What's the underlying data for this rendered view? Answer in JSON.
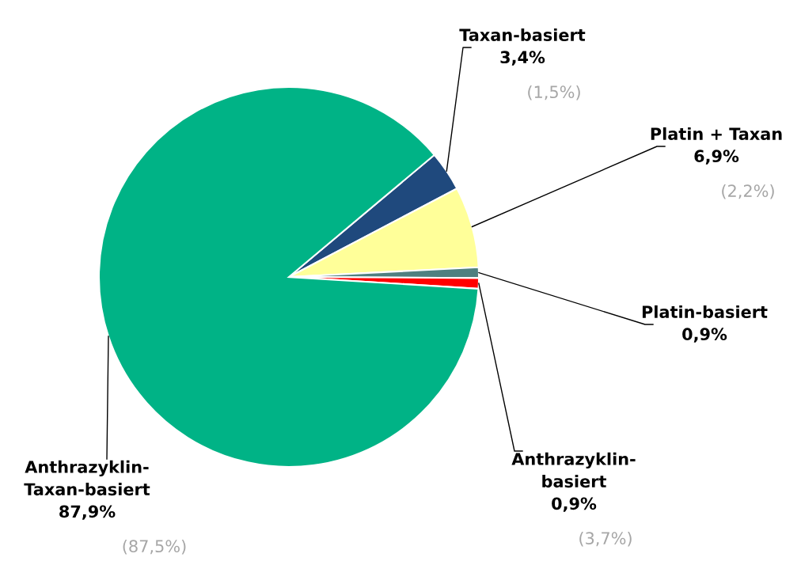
{
  "chart_data": {
    "type": "pie",
    "categories": [
      "Taxan-basiert",
      "Platin + Taxan",
      "Platin-basiert",
      "Anthrazyklin-basiert",
      "Anthrazyklin-Taxan-basiert"
    ],
    "values": [
      3.4,
      6.9,
      0.9,
      0.9,
      87.9
    ],
    "value_labels": [
      "3,4%",
      "6,9%",
      "0,9%",
      "0,9%",
      "87,9%"
    ],
    "colors": [
      "#1f497d",
      "#ffff99",
      "#4f8080",
      "#ff0000",
      "#00b386"
    ],
    "annotations": [
      {
        "text": "(1,5%)",
        "x": "Taxan-basiert"
      },
      {
        "text": "(2,2%)",
        "x": "Platin + Taxan"
      },
      {
        "text": "(3,7%)",
        "x": "Anthrazyklin-basiert"
      },
      {
        "text": "(87,5%)",
        "x": "Anthrazyklin-Taxan-basiert"
      }
    ],
    "legend": false
  }
}
